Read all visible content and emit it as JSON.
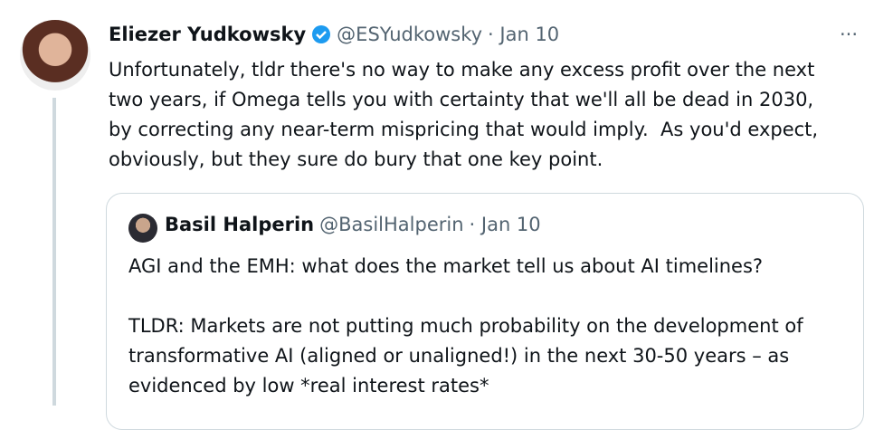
{
  "tweet": {
    "author": "Eliezer Yudkowsky",
    "handle": "@ESYudkowsky",
    "date": "· Jan 10",
    "lines": [
      "Unfortunately, tldr there's no way to make any excess profit over the next",
      "two years, if Omega tells you with certainty that we'll all be dead in 2030,",
      "by correcting any near-term mispricing that would imply.  As you'd expect,",
      "obviously, but they sure do bury that one key point."
    ],
    "more": "···"
  },
  "quote": {
    "author": "Basil Halperin",
    "handle": "@BasilHalperin",
    "date": "· Jan 10",
    "lines": [
      "AGI and the EMH: what does the market tell us about AI timelines?",
      "",
      "TLDR: Markets are not putting much probability on the development of",
      "transformative AI (aligned or unaligned!) in the next 30-50 years – as",
      "evidenced by low *real interest rates*"
    ]
  }
}
